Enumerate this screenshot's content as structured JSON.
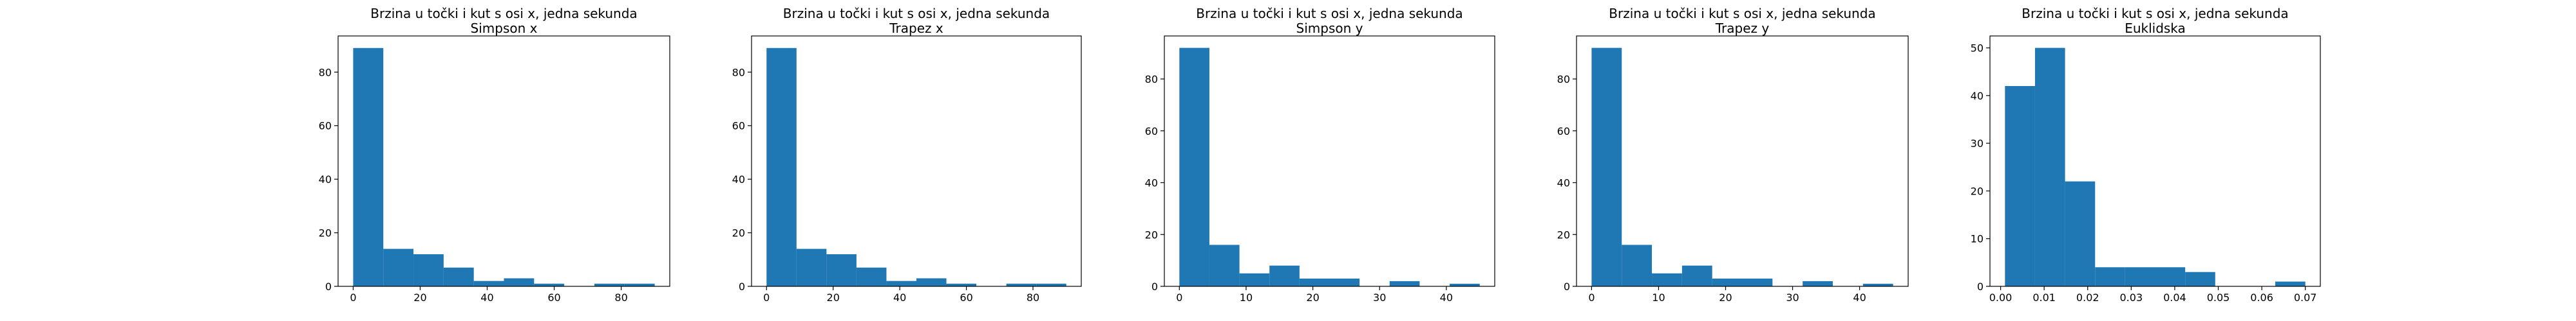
{
  "chart_data": [
    {
      "type": "bar",
      "title": "Brzina u točki i kut s osi x, jedna sekunda",
      "subtitle": "Simpson x",
      "bin_edges": [
        0,
        9,
        18,
        27,
        36,
        45,
        54,
        63,
        72,
        81,
        90
      ],
      "values": [
        89,
        14,
        12,
        7,
        2,
        3,
        1,
        0,
        1,
        1
      ],
      "xlim": [
        -4.5,
        94.5
      ],
      "ylim": [
        0,
        93.5
      ],
      "xticks": [
        0,
        20,
        40,
        60,
        80
      ],
      "yticks": [
        0,
        20,
        40,
        60,
        80
      ],
      "xtick_labels": [
        "0",
        "20",
        "40",
        "60",
        "80"
      ],
      "ytick_labels": [
        "0",
        "20",
        "40",
        "60",
        "80"
      ],
      "color": "#1f77b4"
    },
    {
      "type": "bar",
      "title": "Brzina u točki i kut s osi x, jedna sekunda",
      "subtitle": "Trapez x",
      "bin_edges": [
        0,
        9,
        18,
        27,
        36,
        45,
        54,
        63,
        72,
        81,
        90
      ],
      "values": [
        89,
        14,
        12,
        7,
        2,
        3,
        1,
        0,
        1,
        1
      ],
      "xlim": [
        -4.5,
        94.5
      ],
      "ylim": [
        0,
        93.5
      ],
      "xticks": [
        0,
        20,
        40,
        60,
        80
      ],
      "yticks": [
        0,
        20,
        40,
        60,
        80
      ],
      "xtick_labels": [
        "0",
        "20",
        "40",
        "60",
        "80"
      ],
      "ytick_labels": [
        "0",
        "20",
        "40",
        "60",
        "80"
      ],
      "color": "#1f77b4"
    },
    {
      "type": "bar",
      "title": "Brzina u točki i kut s osi x, jedna sekunda",
      "subtitle": "Simpson y",
      "bin_edges": [
        0,
        4.5,
        9,
        13.5,
        18,
        22.5,
        27,
        31.5,
        36,
        40.5,
        45
      ],
      "values": [
        92,
        16,
        5,
        8,
        3,
        3,
        0,
        2,
        0,
        1
      ],
      "xlim": [
        -2.25,
        47.25
      ],
      "ylim": [
        0,
        96.6
      ],
      "xticks": [
        0,
        10,
        20,
        30,
        40
      ],
      "yticks": [
        0,
        20,
        40,
        60,
        80
      ],
      "xtick_labels": [
        "0",
        "10",
        "20",
        "30",
        "40"
      ],
      "ytick_labels": [
        "0",
        "20",
        "40",
        "60",
        "80"
      ],
      "color": "#1f77b4"
    },
    {
      "type": "bar",
      "title": "Brzina u točki i kut s osi x, jedna sekunda",
      "subtitle": "Trapez y",
      "bin_edges": [
        0,
        4.5,
        9,
        13.5,
        18,
        22.5,
        27,
        31.5,
        36,
        40.5,
        45
      ],
      "values": [
        92,
        16,
        5,
        8,
        3,
        3,
        0,
        2,
        0,
        1
      ],
      "xlim": [
        -2.25,
        47.25
      ],
      "ylim": [
        0,
        96.6
      ],
      "xticks": [
        0,
        10,
        20,
        30,
        40
      ],
      "yticks": [
        0,
        20,
        40,
        60,
        80
      ],
      "xtick_labels": [
        "0",
        "10",
        "20",
        "30",
        "40"
      ],
      "ytick_labels": [
        "0",
        "20",
        "40",
        "60",
        "80"
      ],
      "color": "#1f77b4"
    },
    {
      "type": "bar",
      "title": "Brzina u točki i kut s osi x, jedna sekunda",
      "subtitle": "Euklidska",
      "bin_edges": [
        0.001,
        0.0079,
        0.0148,
        0.0217,
        0.0286,
        0.0355,
        0.0424,
        0.0493,
        0.0562,
        0.0631,
        0.07
      ],
      "values": [
        42,
        50,
        22,
        4,
        4,
        4,
        3,
        0,
        0,
        1
      ],
      "xlim": [
        -0.00245,
        0.07345
      ],
      "ylim": [
        0,
        52.5
      ],
      "xticks": [
        0.0,
        0.01,
        0.02,
        0.03,
        0.04,
        0.05,
        0.06,
        0.07
      ],
      "yticks": [
        0,
        10,
        20,
        30,
        40,
        50
      ],
      "xtick_labels": [
        "0.00",
        "0.01",
        "0.02",
        "0.03",
        "0.04",
        "0.05",
        "0.06",
        "0.07"
      ],
      "ytick_labels": [
        "0",
        "10",
        "20",
        "30",
        "40",
        "50"
      ],
      "color": "#1f77b4"
    }
  ]
}
